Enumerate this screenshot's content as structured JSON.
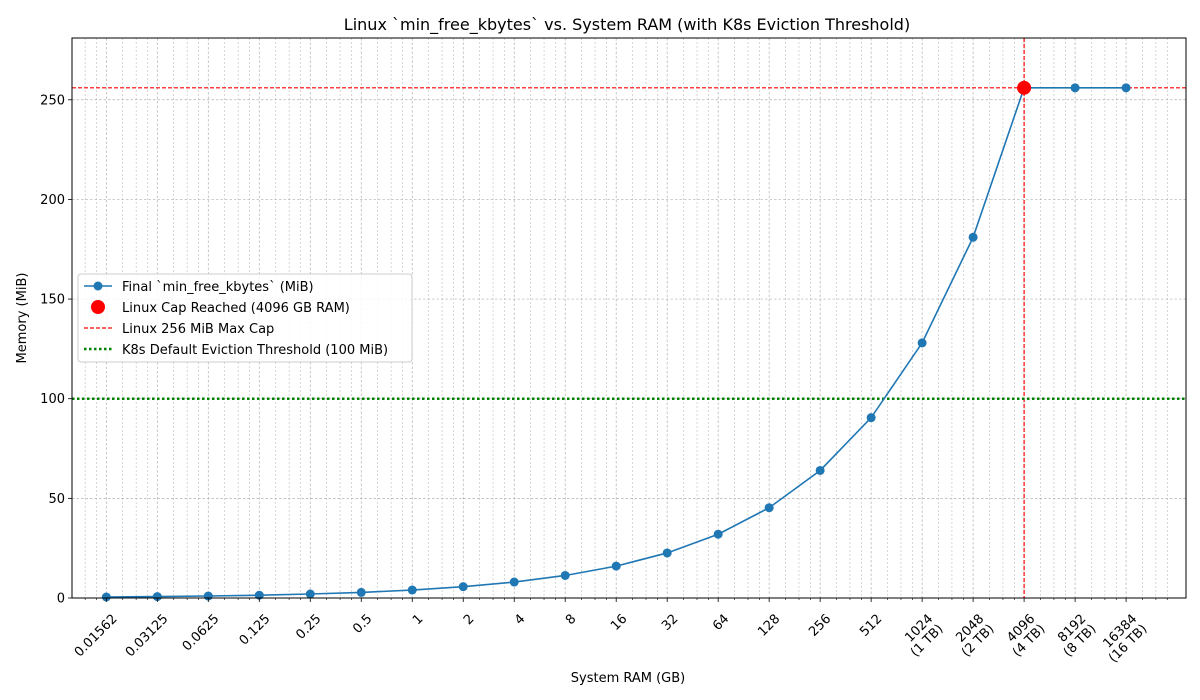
{
  "chart_data": {
    "type": "line",
    "title": "Linux `min_free_kbytes` vs. System RAM (with K8s Eviction Threshold)",
    "xlabel": "System RAM (GB)",
    "ylabel": "Memory (MiB)",
    "x_scale": "log2",
    "xlim": [
      0.0098,
      37000
    ],
    "ylim": [
      0,
      281
    ],
    "grid": true,
    "legend_position": "center-left",
    "x_ticks": [
      {
        "value": 0.015625,
        "label": [
          "0.01562"
        ]
      },
      {
        "value": 0.03125,
        "label": [
          "0.03125"
        ]
      },
      {
        "value": 0.0625,
        "label": [
          "0.0625"
        ]
      },
      {
        "value": 0.125,
        "label": [
          "0.125"
        ]
      },
      {
        "value": 0.25,
        "label": [
          "0.25"
        ]
      },
      {
        "value": 0.5,
        "label": [
          "0.5"
        ]
      },
      {
        "value": 1,
        "label": [
          "1"
        ]
      },
      {
        "value": 2,
        "label": [
          "2"
        ]
      },
      {
        "value": 4,
        "label": [
          "4"
        ]
      },
      {
        "value": 8,
        "label": [
          "8"
        ]
      },
      {
        "value": 16,
        "label": [
          "16"
        ]
      },
      {
        "value": 32,
        "label": [
          "32"
        ]
      },
      {
        "value": 64,
        "label": [
          "64"
        ]
      },
      {
        "value": 128,
        "label": [
          "128"
        ]
      },
      {
        "value": 256,
        "label": [
          "256"
        ]
      },
      {
        "value": 512,
        "label": [
          "512"
        ]
      },
      {
        "value": 1024,
        "label": [
          "1024",
          "(1 TB)"
        ]
      },
      {
        "value": 2048,
        "label": [
          "2048",
          "(2 TB)"
        ]
      },
      {
        "value": 4096,
        "label": [
          "4096",
          "(4 TB)"
        ]
      },
      {
        "value": 8192,
        "label": [
          "8192",
          "(8 TB)"
        ]
      },
      {
        "value": 16384,
        "label": [
          "16384",
          "(16 TB)"
        ]
      }
    ],
    "y_ticks": [
      0,
      50,
      100,
      150,
      200,
      250
    ],
    "series": [
      {
        "name": "Final `min_free_kbytes` (MiB)",
        "color": "#1f77b4",
        "x": [
          0.015625,
          0.03125,
          0.0625,
          0.125,
          0.25,
          0.5,
          1,
          2,
          4,
          8,
          16,
          32,
          64,
          128,
          256,
          512,
          1024,
          2048,
          4096,
          8192,
          16384
        ],
        "y": [
          0.5,
          0.7,
          1.0,
          1.4,
          2.0,
          2.8,
          4.0,
          5.7,
          8.0,
          11.3,
          16.0,
          22.6,
          32.0,
          45.3,
          64.0,
          90.5,
          128.0,
          181.0,
          256.0,
          256.0,
          256.0
        ]
      }
    ],
    "highlight_point": {
      "name": "Linux Cap Reached (4096 GB RAM)",
      "x": 4096,
      "y": 256,
      "color": "#ff0000"
    },
    "reference_lines": [
      {
        "name": "Linux 256 MiB Max Cap",
        "orientation": "horizontal",
        "value": 256,
        "color": "#ff0000",
        "style": "dashed"
      },
      {
        "name": "",
        "orientation": "vertical",
        "value": 4096,
        "color": "#ff0000",
        "style": "dashed"
      },
      {
        "name": "K8s Default Eviction Threshold (100 MiB)",
        "orientation": "horizontal",
        "value": 100,
        "color": "#008000",
        "style": "dotted"
      }
    ]
  }
}
